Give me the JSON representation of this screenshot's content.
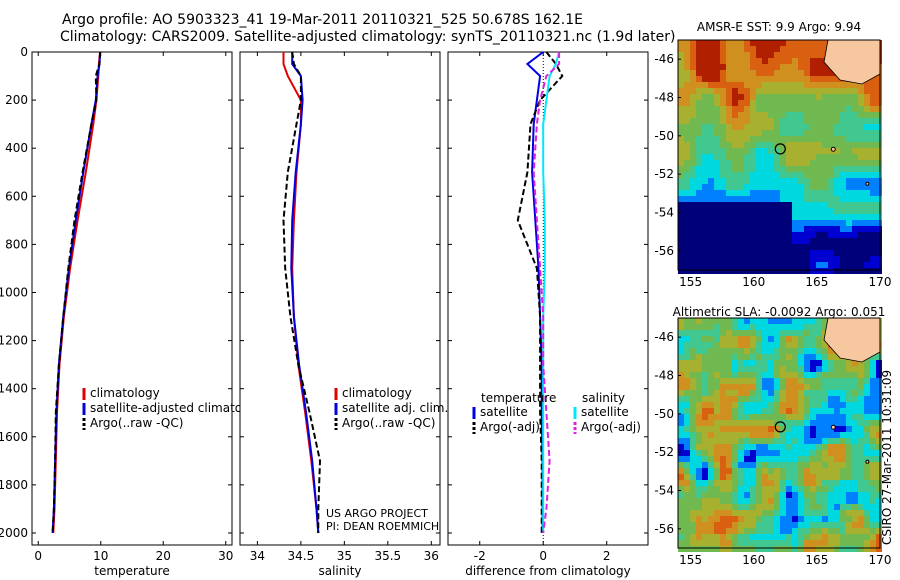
{
  "header": {
    "line1": "Argo profile: AO 5903323_41 19-Mar-2011 20110321_525 50.678S 162.1E",
    "line2": "Climatology: CARS2009. Satellite-adjusted climatology: synTS_20110321.nc (1.9d later)"
  },
  "credit": {
    "line1": "US ARGO PROJECT",
    "line2": "PI: DEAN ROEMMICH"
  },
  "stamp": "CSIRO 27-Mar-2011 10:31:09",
  "colors": {
    "climatology": "#e00000",
    "satellite": "#0000e0",
    "argo": "#000000",
    "satellite_salinity": "#00e8ff",
    "argo_salinity": "#e020e0"
  },
  "chart_data": [
    {
      "type": "line",
      "xlabel": "temperature",
      "ylabel": "",
      "xlim": [
        -1,
        31
      ],
      "ylim": [
        2050,
        0
      ],
      "xticks": [
        0,
        10,
        20,
        30
      ],
      "yticks": [
        0,
        200,
        400,
        600,
        800,
        1000,
        1200,
        1400,
        1600,
        1800,
        2000
      ],
      "legend": [
        "climatology",
        "satellite-adjusted climatolog",
        "Argo(..raw -QC)"
      ],
      "series": [
        {
          "name": "climatology",
          "style": "solid",
          "color": "#e00000",
          "x": [
            9.9,
            9.7,
            9.6,
            9.3,
            8.8,
            7.6,
            6.3,
            5.1,
            4.1,
            3.4,
            3.0,
            2.8,
            2.6,
            2.4
          ],
          "y": [
            0,
            50,
            100,
            200,
            300,
            500,
            700,
            900,
            1100,
            1300,
            1500,
            1700,
            1900,
            2000
          ]
        },
        {
          "name": "satellite-adjusted climatolog",
          "style": "solid",
          "color": "#0000e0",
          "x": [
            9.9,
            9.8,
            9.5,
            9.2,
            8.5,
            7.2,
            6.0,
            4.9,
            4.0,
            3.3,
            2.9,
            2.7,
            2.5,
            2.3
          ],
          "y": [
            0,
            50,
            100,
            200,
            300,
            500,
            700,
            900,
            1100,
            1300,
            1500,
            1700,
            1900,
            2000
          ]
        },
        {
          "name": "Argo(..raw -QC)",
          "style": "dashed",
          "color": "#000000",
          "x": [
            9.9,
            9.8,
            9.2,
            9.3,
            8.5,
            7.1,
            5.8,
            4.8,
            4.0,
            3.3,
            2.8,
            2.7,
            2.5,
            2.3
          ],
          "y": [
            0,
            50,
            100,
            200,
            300,
            500,
            700,
            900,
            1100,
            1300,
            1500,
            1700,
            1900,
            2000
          ]
        }
      ]
    },
    {
      "type": "line",
      "xlabel": "salinity",
      "ylabel": "",
      "xlim": [
        33.8,
        36.1
      ],
      "ylim": [
        2050,
        0
      ],
      "xticks": [
        34,
        34.5,
        35,
        35.5,
        36
      ],
      "legend": [
        "climatology",
        "satellite adj. clim.",
        "Argo(..raw -QC)"
      ],
      "series": [
        {
          "name": "climatology",
          "style": "solid",
          "color": "#e00000",
          "x": [
            34.3,
            34.3,
            34.35,
            34.5,
            34.5,
            34.45,
            34.42,
            34.4,
            34.42,
            34.47,
            34.55,
            34.62,
            34.68,
            34.7
          ],
          "y": [
            0,
            50,
            100,
            200,
            300,
            500,
            700,
            900,
            1100,
            1300,
            1500,
            1700,
            1900,
            2000
          ]
        },
        {
          "name": "satellite adj. clim.",
          "style": "solid",
          "color": "#0000e0",
          "x": [
            34.4,
            34.4,
            34.5,
            34.52,
            34.5,
            34.44,
            34.4,
            34.39,
            34.42,
            34.48,
            34.56,
            34.63,
            34.68,
            34.7
          ],
          "y": [
            0,
            50,
            100,
            200,
            300,
            500,
            700,
            900,
            1100,
            1300,
            1500,
            1700,
            1900,
            2000
          ]
        },
        {
          "name": "Argo(..raw -QC)",
          "style": "dashed",
          "color": "#000000",
          "x": [
            34.4,
            34.42,
            34.5,
            34.5,
            34.45,
            34.35,
            34.3,
            34.32,
            34.38,
            34.47,
            34.6,
            34.72,
            34.7,
            34.7
          ],
          "y": [
            0,
            50,
            100,
            200,
            300,
            500,
            700,
            900,
            1100,
            1300,
            1500,
            1700,
            1900,
            2000
          ]
        }
      ]
    },
    {
      "type": "line",
      "xlabel": "difference from climatology",
      "ylabel": "",
      "xlim": [
        -3,
        3.3
      ],
      "ylim": [
        2050,
        0
      ],
      "xticks": [
        -2,
        0,
        2
      ],
      "legend_temperature_heading": "temperature",
      "legend_salinity_heading": "salinity",
      "legend": [
        "satellite",
        "Argo(-adj)",
        "satellite",
        "Argo(-adj)"
      ],
      "series": [
        {
          "name": "satellite",
          "group": "temperature",
          "style": "solid",
          "color": "#0000e0",
          "x": [
            0.0,
            -0.5,
            -0.1,
            -0.2,
            -0.3,
            -0.35,
            -0.25,
            -0.15,
            -0.1,
            -0.05,
            -0.05,
            -0.02,
            -0.02,
            -0.02
          ],
          "y": [
            0,
            50,
            100,
            200,
            300,
            500,
            700,
            900,
            1100,
            1300,
            1500,
            1700,
            1900,
            2000
          ]
        },
        {
          "name": "Argo(-adj)",
          "group": "temperature",
          "style": "dashed",
          "color": "#000000",
          "x": [
            0.1,
            0.4,
            0.6,
            -0.1,
            -0.4,
            -0.5,
            -0.8,
            -0.2,
            -0.1,
            -0.1,
            -0.1,
            -0.05,
            -0.05,
            -0.05
          ],
          "y": [
            0,
            50,
            100,
            200,
            300,
            500,
            700,
            900,
            1100,
            1300,
            1500,
            1700,
            1900,
            2000
          ]
        },
        {
          "name": "satellite",
          "group": "salinity",
          "style": "solid",
          "color": "#00e8ff",
          "x": [
            0.5,
            0.4,
            0.2,
            0.1,
            0.0,
            0.0,
            0.05,
            0.05,
            0.0,
            0.0,
            0.0,
            0.0,
            0.0,
            0.0
          ],
          "y": [
            0,
            50,
            100,
            200,
            300,
            500,
            700,
            900,
            1100,
            1300,
            1500,
            1700,
            1900,
            2000
          ]
        },
        {
          "name": "Argo(-adj)",
          "group": "salinity",
          "style": "dashed",
          "color": "#e020e0",
          "x": [
            0.5,
            0.5,
            0.1,
            -0.1,
            -0.2,
            -0.3,
            -0.2,
            -0.1,
            0.0,
            0.0,
            0.1,
            0.2,
            0.1,
            0.0
          ],
          "y": [
            0,
            50,
            100,
            200,
            300,
            500,
            700,
            900,
            1100,
            1300,
            1500,
            1700,
            1900,
            2000
          ]
        }
      ]
    },
    {
      "type": "heatmap",
      "title": "AMSR-E SST: 9.9 Argo: 9.94",
      "xlim": [
        154,
        170
      ],
      "ylim": [
        -57,
        -45
      ],
      "xticks": [
        155,
        160,
        165,
        170
      ],
      "yticks": [
        -46,
        -48,
        -50,
        -52,
        -54,
        -56
      ],
      "profile_location": [
        162.1,
        -50.68
      ],
      "palette": [
        "#00007a",
        "#0000d0",
        "#0080ff",
        "#00d8e0",
        "#40c890",
        "#70b850",
        "#a8b030",
        "#d09020",
        "#d86010",
        "#b02000"
      ]
    },
    {
      "type": "heatmap",
      "title": "Altimetric SLA: -0.0092 Argo: 0.051",
      "xlim": [
        154,
        170
      ],
      "ylim": [
        -57,
        -45
      ],
      "xticks": [
        155,
        160,
        165,
        170
      ],
      "yticks": [
        -46,
        -48,
        -50,
        -52,
        -54,
        -56
      ],
      "profile_location": [
        162.1,
        -50.68
      ],
      "palette": [
        "#00007a",
        "#0000d0",
        "#0080ff",
        "#00d8e0",
        "#40c890",
        "#70b850",
        "#a8b030",
        "#d09020",
        "#d86010",
        "#b02000"
      ]
    }
  ]
}
